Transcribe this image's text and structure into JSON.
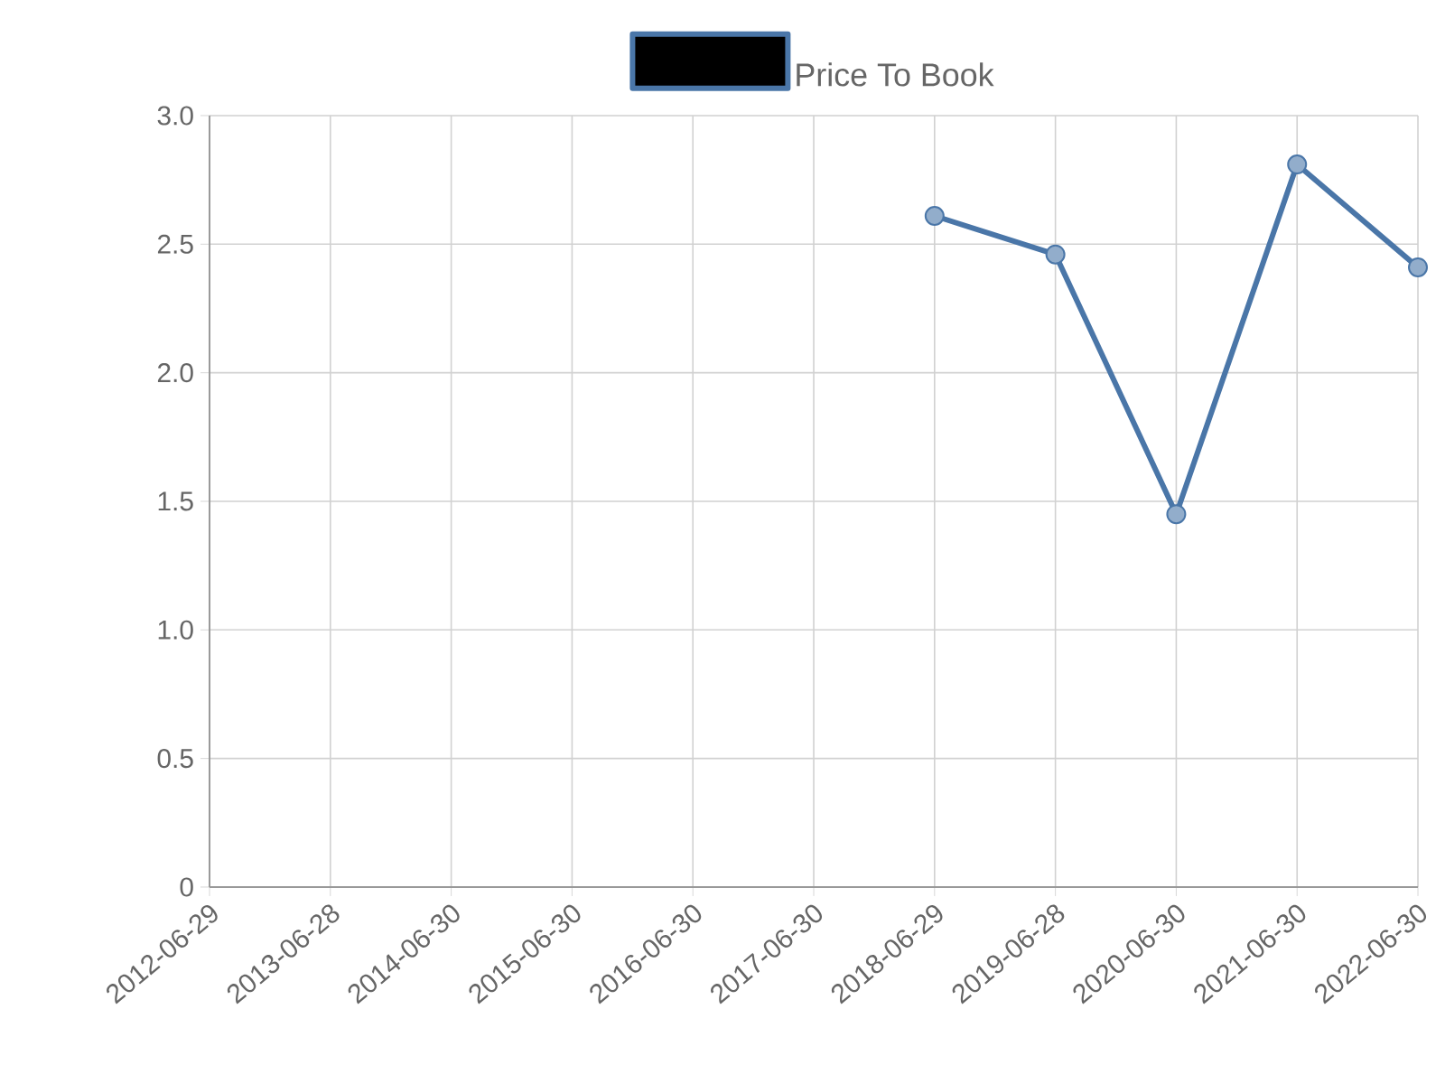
{
  "chart_data": {
    "type": "line",
    "categories": [
      "2012-06-29",
      "2013-06-28",
      "2014-06-30",
      "2015-06-30",
      "2016-06-30",
      "2017-06-30",
      "2018-06-29",
      "2019-06-28",
      "2020-06-30",
      "2021-06-30",
      "2022-06-30"
    ],
    "series": [
      {
        "name": "Price To Book",
        "color": "#4a76a8",
        "values": [
          null,
          null,
          null,
          null,
          null,
          null,
          2.61,
          2.46,
          1.45,
          2.81,
          2.41
        ]
      }
    ],
    "ylim": [
      0,
      3
    ],
    "yticks": [
      0,
      0.5,
      {
        "value": 1,
        "label": "1.0"
      },
      1.5,
      {
        "value": 2,
        "label": "2.0"
      },
      2.5,
      {
        "value": 3,
        "label": "3.0"
      }
    ],
    "grid": true,
    "legend": "top",
    "marker": "circle",
    "line_style": "solid"
  }
}
